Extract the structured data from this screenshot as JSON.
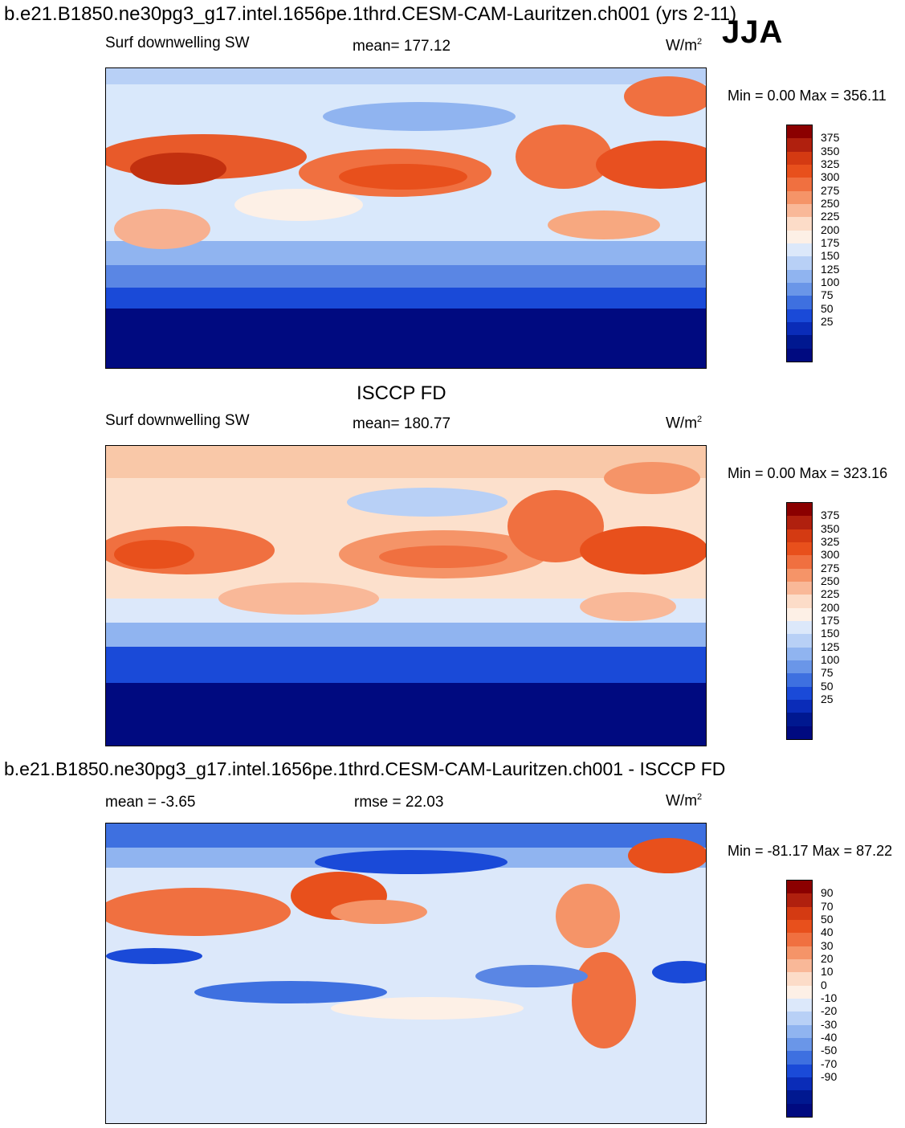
{
  "header": {
    "case_title": "b.e21.B1850.ne30pg3_g17.intel.1656pe.1thrd.CESM-CAM-Lauritzen.ch001 (yrs 2-11)",
    "season": "JJA"
  },
  "panels": [
    {
      "id": "model",
      "variable": "Surf downwelling SW",
      "stat": "mean= 177.12",
      "units": "W/m",
      "units_sup": "2",
      "min_max": "Min =    0.00 Max = 356.11"
    },
    {
      "id": "obs",
      "source_title": "ISCCP FD",
      "variable": "Surf downwelling SW",
      "stat": "mean= 180.77",
      "units": "W/m",
      "units_sup": "2",
      "min_max": "Min =    0.00 Max = 323.16"
    },
    {
      "id": "diff",
      "diff_title": "b.e21.B1850.ne30pg3_g17.intel.1656pe.1thrd.CESM-CAM-Lauritzen.ch001 - ISCCP FD",
      "mean": "mean =  -3.65",
      "rmse": "rmse =  22.03",
      "units": "W/m",
      "units_sup": "2",
      "min_max": "Min = -81.17 Max =  87.22"
    }
  ],
  "colorbars": {
    "absolute": {
      "labels": [
        "375",
        "350",
        "325",
        "300",
        "275",
        "250",
        "225",
        "200",
        "175",
        "150",
        "125",
        "100",
        "75",
        "50",
        "25"
      ],
      "colors": [
        "#8b0000",
        "#b0200e",
        "#d43a12",
        "#e8501c",
        "#f07040",
        "#f59468",
        "#f9b898",
        "#fcdcc8",
        "#fdf0e6",
        "#dce8fa",
        "#b8d0f6",
        "#90b4f0",
        "#6a96e8",
        "#3e70e0",
        "#1a4ad8",
        "#0a2cb8",
        "#001890",
        "#000a80"
      ]
    },
    "difference": {
      "labels": [
        "90",
        "70",
        "50",
        "40",
        "30",
        "20",
        "10",
        "0",
        "-10",
        "-20",
        "-30",
        "-40",
        "-50",
        "-70",
        "-90"
      ],
      "colors": [
        "#8b0000",
        "#b0200e",
        "#d43a12",
        "#e8501c",
        "#f07040",
        "#f59468",
        "#f9b898",
        "#fcdcc8",
        "#fdf0e6",
        "#dce8fa",
        "#b8d0f6",
        "#90b4f0",
        "#6a96e8",
        "#3e70e0",
        "#1a4ad8",
        "#0a2cb8",
        "#001890",
        "#000a80"
      ]
    }
  }
}
